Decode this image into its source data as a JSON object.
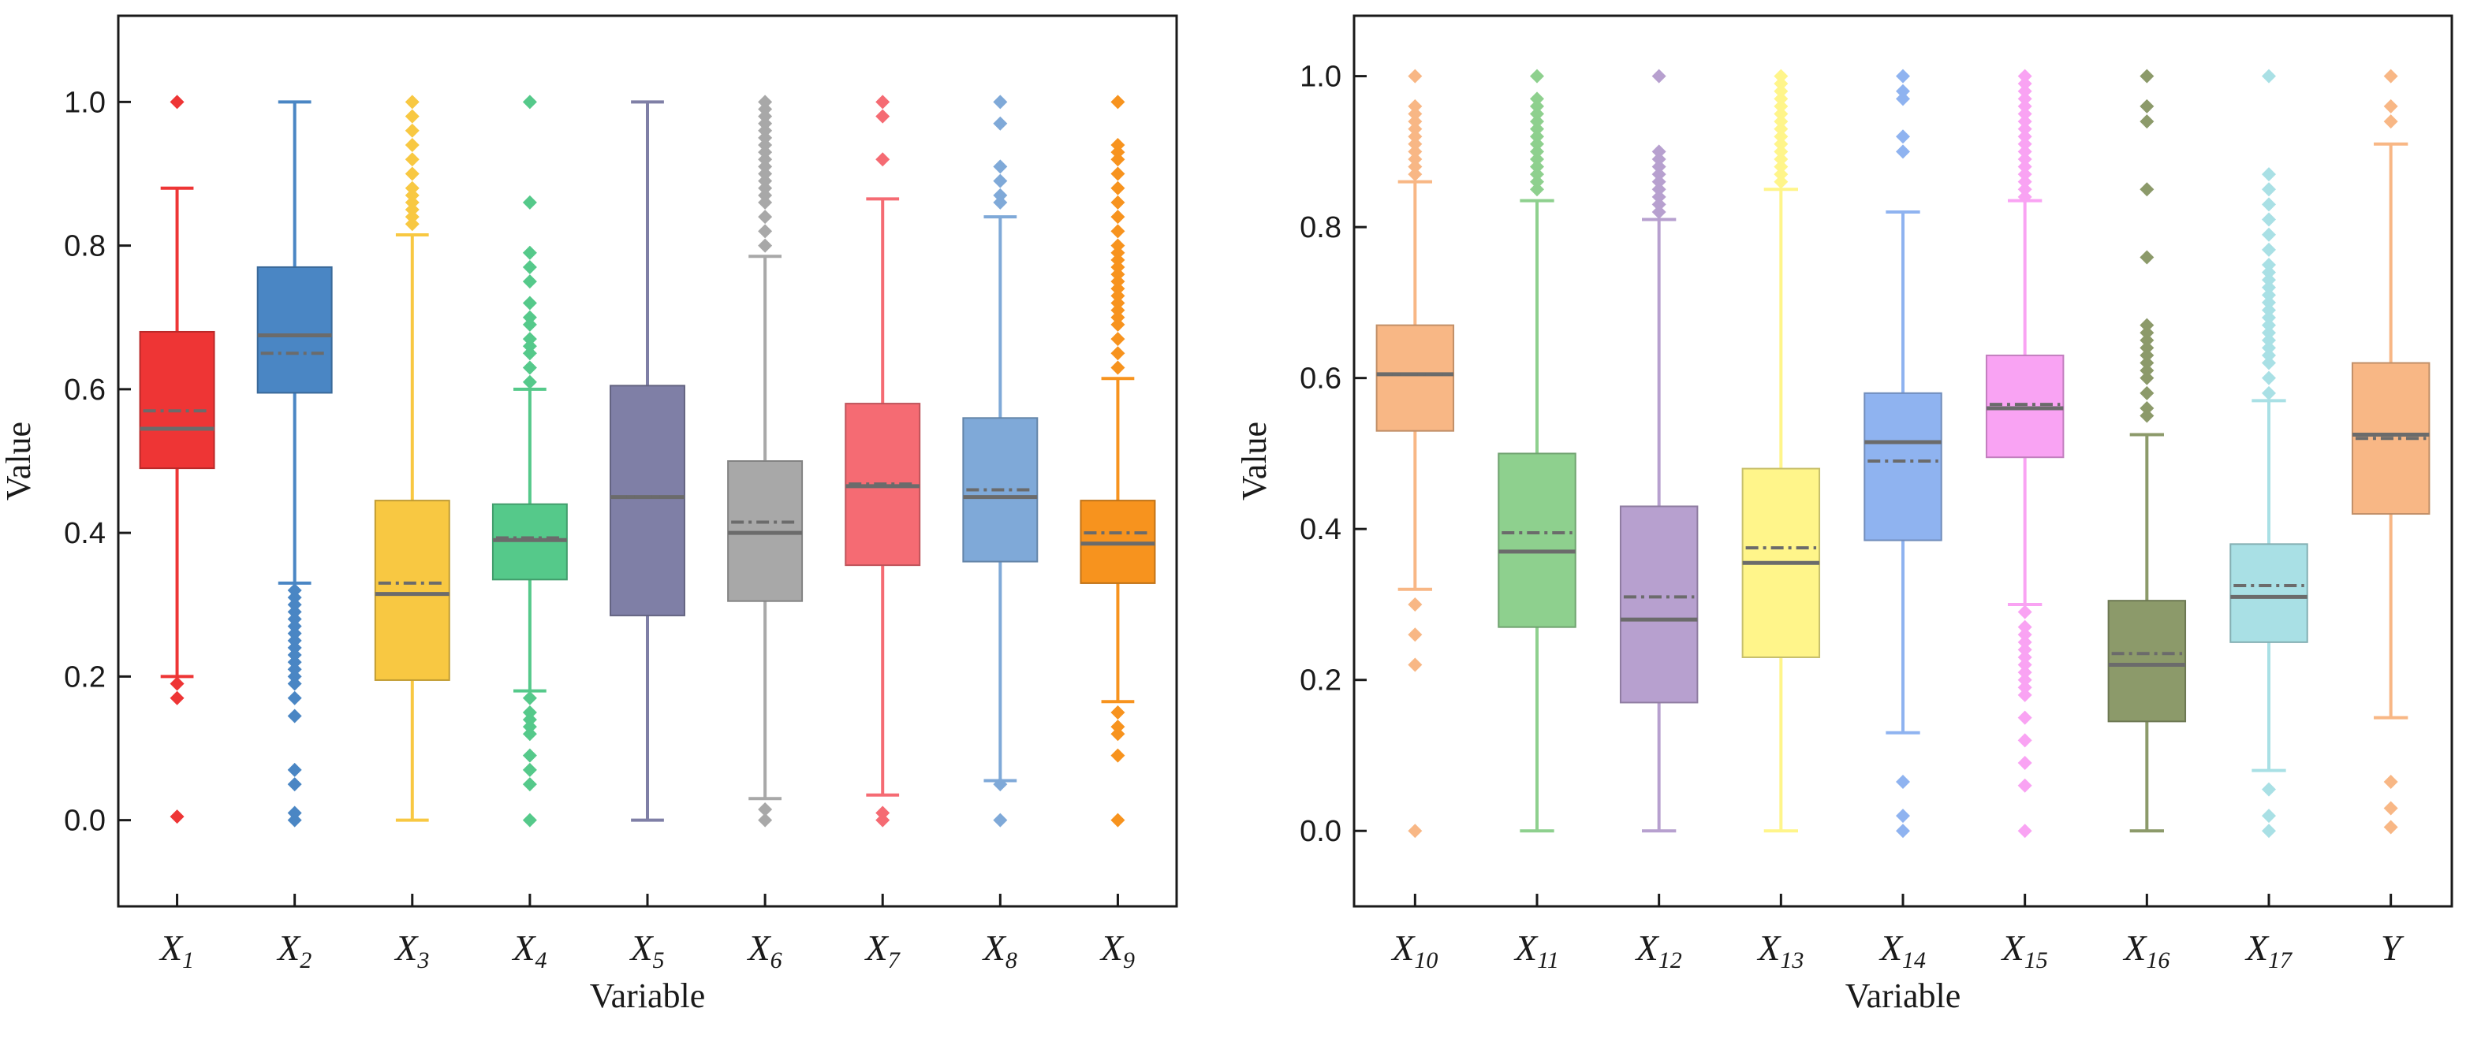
{
  "chart_data": [
    {
      "type": "box",
      "title": "",
      "xlabel": "Variable",
      "ylabel": "Value",
      "ylim": [
        -0.12,
        1.12
      ],
      "yticks": [
        "0.0",
        "0.2",
        "0.4",
        "0.6",
        "0.8",
        "1.0"
      ],
      "grid": false,
      "categories": [
        {
          "base": "X",
          "sub": "1",
          "color": "#ee3535",
          "min": 0.2,
          "q1": 0.49,
          "median": 0.545,
          "mean": 0.57,
          "q3": 0.68,
          "max": 0.88,
          "outliers": [
            1.0,
            0.19,
            0.17,
            0.005
          ]
        },
        {
          "base": "X",
          "sub": "2",
          "color": "#4a86c4",
          "min": 0.33,
          "q1": 0.595,
          "median": 0.675,
          "mean": 0.65,
          "q3": 0.77,
          "max": 1.0,
          "outliers": [
            0.32,
            0.31,
            0.3,
            0.29,
            0.28,
            0.27,
            0.26,
            0.25,
            0.24,
            0.23,
            0.22,
            0.21,
            0.2,
            0.19,
            0.17,
            0.145,
            0.07,
            0.05,
            0.01,
            0.0
          ]
        },
        {
          "base": "X",
          "sub": "3",
          "color": "#f8c842",
          "min": 0.0,
          "q1": 0.195,
          "median": 0.315,
          "mean": 0.33,
          "q3": 0.445,
          "max": 0.815,
          "outliers": [
            0.83,
            0.84,
            0.85,
            0.86,
            0.87,
            0.88,
            0.9,
            0.92,
            0.94,
            0.96,
            0.98,
            1.0
          ]
        },
        {
          "base": "X",
          "sub": "4",
          "color": "#55c98a",
          "min": 0.18,
          "q1": 0.335,
          "median": 0.39,
          "mean": 0.393,
          "q3": 0.44,
          "max": 0.6,
          "outliers": [
            0.61,
            0.63,
            0.65,
            0.66,
            0.67,
            0.69,
            0.7,
            0.72,
            0.75,
            0.77,
            0.79,
            0.86,
            1.0,
            0.17,
            0.15,
            0.14,
            0.13,
            0.12,
            0.09,
            0.07,
            0.05,
            0.0
          ]
        },
        {
          "base": "X",
          "sub": "5",
          "color": "#7f7fa6",
          "min": 0.0,
          "q1": 0.285,
          "median": 0.45,
          "mean": 0.45,
          "q3": 0.605,
          "max": 1.0,
          "outliers": []
        },
        {
          "base": "X",
          "sub": "6",
          "color": "#a8a8a8",
          "min": 0.03,
          "q1": 0.305,
          "median": 0.4,
          "mean": 0.415,
          "q3": 0.5,
          "max": 0.785,
          "outliers": [
            0.8,
            0.82,
            0.84,
            0.86,
            0.87,
            0.88,
            0.89,
            0.9,
            0.91,
            0.92,
            0.93,
            0.94,
            0.95,
            0.96,
            0.97,
            0.98,
            0.99,
            1.0,
            0.015,
            0.0
          ]
        },
        {
          "base": "X",
          "sub": "7",
          "color": "#f56b73",
          "min": 0.035,
          "q1": 0.355,
          "median": 0.465,
          "mean": 0.468,
          "q3": 0.58,
          "max": 0.865,
          "outliers": [
            0.92,
            0.98,
            1.0,
            0.01,
            0.0
          ]
        },
        {
          "base": "X",
          "sub": "8",
          "color": "#7fa9d8",
          "min": 0.055,
          "q1": 0.36,
          "median": 0.45,
          "mean": 0.46,
          "q3": 0.56,
          "max": 0.84,
          "outliers": [
            0.86,
            0.87,
            0.89,
            0.91,
            0.97,
            1.0,
            0.05,
            0.0
          ]
        },
        {
          "base": "X",
          "sub": "9",
          "color": "#f7931e",
          "min": 0.165,
          "q1": 0.33,
          "median": 0.385,
          "mean": 0.4,
          "q3": 0.445,
          "max": 0.615,
          "outliers": [
            0.63,
            0.65,
            0.67,
            0.69,
            0.7,
            0.71,
            0.72,
            0.73,
            0.74,
            0.75,
            0.76,
            0.77,
            0.78,
            0.79,
            0.8,
            0.82,
            0.84,
            0.86,
            0.88,
            0.9,
            0.92,
            0.93,
            0.94,
            1.0,
            0.15,
            0.13,
            0.12,
            0.09,
            0.0
          ]
        }
      ]
    },
    {
      "type": "box",
      "title": "",
      "xlabel": "Variable",
      "ylabel": "Value",
      "ylim": [
        -0.1,
        1.08
      ],
      "yticks": [
        "0.0",
        "0.2",
        "0.4",
        "0.6",
        "0.8",
        "1.0"
      ],
      "grid": false,
      "categories": [
        {
          "base": "X",
          "sub": "10",
          "color": "#f8b785",
          "min": 0.32,
          "q1": 0.53,
          "median": 0.605,
          "mean": 0.605,
          "q3": 0.67,
          "max": 0.86,
          "outliers": [
            0.87,
            0.88,
            0.89,
            0.9,
            0.91,
            0.92,
            0.93,
            0.94,
            0.95,
            0.96,
            1.0,
            0.3,
            0.26,
            0.22,
            0.0
          ]
        },
        {
          "base": "X",
          "sub": "11",
          "color": "#8ed08e",
          "min": 0.0,
          "q1": 0.27,
          "median": 0.37,
          "mean": 0.395,
          "q3": 0.5,
          "max": 0.835,
          "outliers": [
            0.85,
            0.86,
            0.87,
            0.88,
            0.89,
            0.9,
            0.91,
            0.92,
            0.93,
            0.94,
            0.95,
            0.96,
            0.97,
            1.0
          ]
        },
        {
          "base": "X",
          "sub": "12",
          "color": "#b7a0cf",
          "min": 0.0,
          "q1": 0.17,
          "median": 0.28,
          "mean": 0.31,
          "q3": 0.43,
          "max": 0.81,
          "outliers": [
            0.82,
            0.83,
            0.84,
            0.85,
            0.86,
            0.87,
            0.88,
            0.89,
            0.9,
            1.0
          ]
        },
        {
          "base": "X",
          "sub": "13",
          "color": "#fff58a",
          "min": 0.0,
          "q1": 0.23,
          "median": 0.355,
          "mean": 0.375,
          "q3": 0.48,
          "max": 0.85,
          "outliers": [
            0.86,
            0.87,
            0.88,
            0.89,
            0.9,
            0.91,
            0.92,
            0.93,
            0.94,
            0.95,
            0.96,
            0.97,
            0.98,
            0.99,
            1.0
          ]
        },
        {
          "base": "X",
          "sub": "14",
          "color": "#8fb3f0",
          "min": 0.13,
          "q1": 0.385,
          "median": 0.515,
          "mean": 0.49,
          "q3": 0.58,
          "max": 0.82,
          "outliers": [
            0.9,
            0.92,
            0.97,
            0.98,
            1.0,
            0.065,
            0.02,
            0.0
          ]
        },
        {
          "base": "X",
          "sub": "15",
          "color": "#f9a3f3",
          "min": 0.3,
          "q1": 0.495,
          "median": 0.56,
          "mean": 0.565,
          "q3": 0.63,
          "max": 0.835,
          "outliers": [
            0.84,
            0.85,
            0.86,
            0.87,
            0.88,
            0.89,
            0.9,
            0.91,
            0.92,
            0.93,
            0.94,
            0.95,
            0.96,
            0.97,
            0.98,
            0.99,
            1.0,
            0.29,
            0.27,
            0.26,
            0.25,
            0.24,
            0.23,
            0.22,
            0.21,
            0.2,
            0.19,
            0.18,
            0.15,
            0.12,
            0.09,
            0.06,
            0.0
          ]
        },
        {
          "base": "X",
          "sub": "16",
          "color": "#8c9a6a",
          "min": 0.0,
          "q1": 0.145,
          "median": 0.22,
          "mean": 0.235,
          "q3": 0.305,
          "max": 0.525,
          "outliers": [
            0.55,
            0.56,
            0.58,
            0.6,
            0.61,
            0.62,
            0.63,
            0.64,
            0.65,
            0.66,
            0.67,
            0.76,
            0.85,
            0.94,
            0.96,
            1.0
          ]
        },
        {
          "base": "X",
          "sub": "17",
          "color": "#a9e0e5",
          "min": 0.08,
          "q1": 0.25,
          "median": 0.31,
          "mean": 0.325,
          "q3": 0.38,
          "max": 0.57,
          "outliers": [
            0.58,
            0.6,
            0.62,
            0.63,
            0.64,
            0.65,
            0.66,
            0.67,
            0.68,
            0.69,
            0.7,
            0.71,
            0.72,
            0.73,
            0.74,
            0.75,
            0.77,
            0.79,
            0.81,
            0.83,
            0.85,
            0.87,
            1.0,
            0.055,
            0.02,
            0.0
          ]
        },
        {
          "base": "Y",
          "sub": "",
          "color": "#f8b785",
          "min": 0.15,
          "q1": 0.42,
          "median": 0.525,
          "mean": 0.52,
          "q3": 0.62,
          "max": 0.91,
          "outliers": [
            0.94,
            0.96,
            1.0,
            0.065,
            0.03,
            0.005
          ]
        }
      ]
    }
  ]
}
